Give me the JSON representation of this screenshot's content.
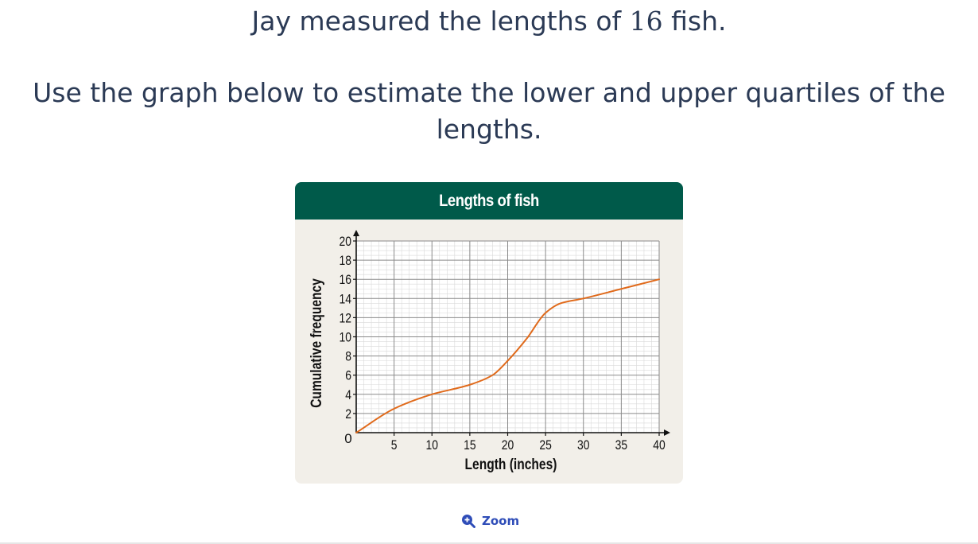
{
  "question": {
    "line1_pre": "Jay measured the lengths of ",
    "line1_num": "16",
    "line1_post": " fish.",
    "line2": "Use the graph below to estimate the lower and upper quartiles of the lengths."
  },
  "zoom": {
    "label": "Zoom",
    "icon": "zoom-in-icon"
  },
  "colors": {
    "header": "#005a4a",
    "card_bg": "#f2efe9",
    "curve": "#e06a1b",
    "link": "#2f4db8"
  },
  "chart_data": {
    "type": "line",
    "title": "Lengths of fish",
    "xlabel": "Length (inches)",
    "ylabel": "Cumulative frequency",
    "xlim": [
      0,
      40
    ],
    "ylim": [
      0,
      20
    ],
    "x_ticks": [
      "5",
      "10",
      "15",
      "20",
      "25",
      "30",
      "35",
      "40"
    ],
    "x_tick_values": [
      5,
      10,
      15,
      20,
      25,
      30,
      35,
      40
    ],
    "y_ticks": [
      "2",
      "4",
      "6",
      "8",
      "10",
      "12",
      "14",
      "16",
      "18",
      "20"
    ],
    "y_tick_values": [
      2,
      4,
      6,
      8,
      10,
      12,
      14,
      16,
      18,
      20
    ],
    "origin_label": "0",
    "grid": true,
    "series": [
      {
        "x": [
          0,
          5,
          10,
          15,
          18,
          20,
          22.5,
          25,
          27,
          30,
          35,
          40
        ],
        "y": [
          0,
          2.5,
          4,
          5,
          6,
          7.5,
          9.8,
          12.5,
          13.5,
          14,
          15,
          16
        ]
      }
    ]
  }
}
